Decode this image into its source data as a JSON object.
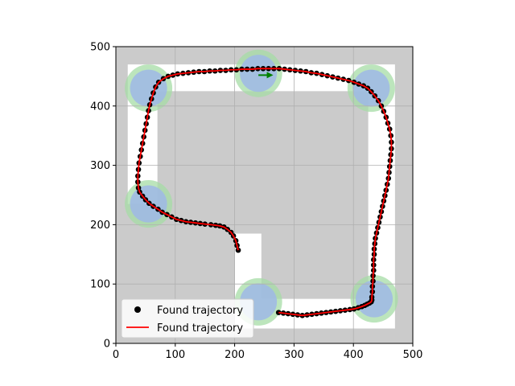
{
  "chart_data": {
    "type": "scatter",
    "xlim": [
      0,
      500
    ],
    "ylim": [
      0,
      500
    ],
    "x_ticks": [
      0,
      100,
      200,
      300,
      400,
      500
    ],
    "y_ticks": [
      0,
      100,
      200,
      300,
      400,
      500
    ],
    "grid": true,
    "legend_placement": "bottom-left",
    "colors": {
      "background": "#cbcbcb",
      "road": "#ffffff",
      "goal_region": "#a6dca6",
      "explored_region": "#9fb9e6",
      "marker": "#000000",
      "line": "#ff0000",
      "arrow": "#008000"
    },
    "track": {
      "outer_boundary": [
        [
          20,
          470
        ],
        [
          470,
          470
        ],
        [
          470,
          25
        ],
        [
          200,
          25
        ],
        [
          200,
          235
        ],
        [
          20,
          235
        ]
      ],
      "inner_boundary": [
        [
          70,
          425
        ],
        [
          425,
          425
        ],
        [
          425,
          75
        ],
        [
          245,
          75
        ],
        [
          245,
          185
        ],
        [
          70,
          185
        ]
      ]
    },
    "goal_regions": [
      {
        "center": [
          55,
          430
        ],
        "radius": 40
      },
      {
        "center": [
          240,
          455
        ],
        "radius": 40
      },
      {
        "center": [
          430,
          430
        ],
        "radius": 40
      },
      {
        "center": [
          55,
          235
        ],
        "radius": 40
      },
      {
        "center": [
          240,
          70
        ],
        "radius": 40
      },
      {
        "center": [
          435,
          75
        ],
        "radius": 40
      }
    ],
    "arrow": {
      "from": [
        240,
        452
      ],
      "to": [
        265,
        452
      ]
    },
    "series": [
      {
        "name": "Found trajectory",
        "kind": "marker",
        "x": [
          206,
          204,
          202,
          198,
          194,
          188,
          182,
          175,
          168,
          160,
          150,
          142,
          134,
          126,
          118,
          110,
          102,
          94,
          86,
          78,
          71,
          63,
          56,
          50,
          45,
          40,
          38,
          37,
          37,
          38,
          39,
          41,
          43,
          45,
          47,
          49,
          51,
          53,
          55,
          57,
          60,
          63,
          67,
          72,
          80,
          88,
          96,
          104,
          113,
          122,
          131,
          140,
          149,
          158,
          167,
          176,
          185,
          194,
          203,
          212,
          221,
          230,
          239,
          248,
          257,
          266,
          275,
          284,
          293,
          302,
          311,
          320,
          329,
          338,
          347,
          356,
          365,
          374,
          383,
          392,
          401,
          409,
          417,
          424,
          430,
          436,
          442,
          447,
          451,
          455,
          458,
          461,
          463,
          464,
          464,
          463,
          462,
          461,
          460,
          459,
          457,
          455,
          453,
          451,
          449,
          447,
          445,
          443,
          441,
          439,
          437,
          436,
          435,
          435,
          434,
          434,
          434,
          433,
          433,
          432,
          432,
          431,
          431,
          430,
          427,
          423,
          419,
          414,
          408,
          401,
          394,
          386,
          378,
          370,
          362,
          354,
          346,
          338,
          330,
          322,
          314,
          306,
          298,
          290,
          282,
          274
        ],
        "y": [
          157,
          165,
          173,
          181,
          187,
          192,
          196,
          198,
          199,
          200,
          201,
          202,
          203,
          204,
          205,
          207,
          209,
          213,
          217,
          221,
          226,
          231,
          236,
          242,
          248,
          255,
          262,
          272,
          282,
          293,
          304,
          315,
          326,
          337,
          348,
          359,
          370,
          381,
          392,
          402,
          412,
          422,
          432,
          440,
          446,
          450,
          452,
          454,
          455,
          456,
          457,
          458,
          458,
          459,
          459,
          460,
          460,
          461,
          461,
          462,
          462,
          462,
          463,
          463,
          463,
          463,
          463,
          462,
          461,
          460,
          459,
          458,
          456,
          455,
          453,
          451,
          449,
          447,
          445,
          443,
          440,
          437,
          434,
          430,
          424,
          417,
          409,
          400,
          391,
          381,
          371,
          361,
          350,
          339,
          328,
          318,
          308,
          298,
          288,
          278,
          268,
          258,
          249,
          240,
          231,
          222,
          213,
          204,
          195,
          186,
          177,
          168,
          159,
          150,
          141,
          132,
          123,
          114,
          105,
          96,
          87,
          78,
          73,
          70,
          68,
          66,
          64,
          62,
          60,
          58,
          57,
          56,
          55,
          54,
          53,
          52,
          51,
          50,
          49,
          48,
          47,
          48,
          49,
          50,
          51,
          52
        ]
      },
      {
        "name": "Found trajectory",
        "kind": "line"
      }
    ]
  }
}
